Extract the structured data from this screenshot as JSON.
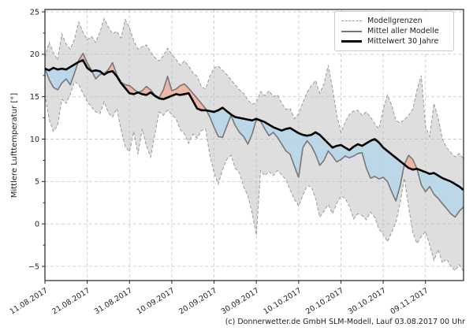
{
  "caption": "(c) Donnerwetter.de GmbH SLM-Modell, Lauf 03.08.2017 00 Uhr",
  "chart_data": {
    "type": "line",
    "title": "",
    "xlabel": "",
    "ylabel": "Mittlere Lufttemperatur [°]",
    "ylim": [
      -6.7,
      25.3
    ],
    "yticks": [
      25,
      20,
      15,
      10,
      5,
      0,
      -5
    ],
    "ytick_labels": [
      "25",
      "20",
      "15",
      "10",
      "5",
      "0",
      "−5"
    ],
    "yminor_ticks": [
      22.5,
      17.5,
      12.5,
      7.5,
      2.5,
      -2.5
    ],
    "grid": true,
    "legend_position": "top-right",
    "x_tick_days": [
      0,
      10,
      20,
      30,
      40,
      50,
      60,
      70,
      80,
      90
    ],
    "x_tick_labels": [
      "11.08.2017",
      "21.08.2017",
      "31.08.2017",
      "10.09.2017",
      "20.09.2017",
      "30.09.2017",
      "10.10.2017",
      "20.10.2017",
      "30.10.2017",
      "09.11.2017"
    ],
    "legend": [
      {
        "label": "Modellgrenzen",
        "style": "dashed-gray"
      },
      {
        "label": "Mittel aller Modelle",
        "style": "solid-gray"
      },
      {
        "label": "Mittelwert 30 Jahre",
        "style": "solid-black-thick"
      }
    ],
    "colors": {
      "band_fill": "#bdbdbd",
      "warm_anomaly_fill": "#f0b0a0",
      "cold_anomaly_fill": "#b7d6e8",
      "bound_line": "#999999",
      "model_mean_line": "#777777",
      "climate_mean_line": "#000000",
      "grid_line": "#cccccc",
      "frame": "#222222",
      "text": "#222222"
    },
    "series": [
      {
        "name": "Modellgrenzen",
        "role": "upper_bound",
        "values": [
          19.6,
          21.4,
          20.2,
          19.3,
          22.4,
          21.2,
          20.6,
          21.8,
          23.8,
          22.6,
          21.7,
          22.1,
          21.4,
          22.6,
          24.2,
          23.2,
          22.4,
          22.7,
          21.9,
          24.1,
          23.1,
          21.6,
          20.6,
          20.9,
          21.1,
          20.3,
          19.6,
          19.2,
          19.8,
          20.7,
          20.0,
          19.4,
          18.7,
          19.2,
          18.6,
          17.8,
          17.4,
          16.2,
          15.9,
          17.4,
          18.4,
          18.6,
          18.1,
          17.6,
          17.0,
          16.4,
          15.8,
          15.4,
          14.6,
          14.1,
          14.3,
          15.6,
          15.1,
          15.7,
          15.0,
          15.2,
          14.2,
          13.5,
          13.6,
          12.4,
          13.0,
          14.3,
          15.5,
          16.3,
          16.9,
          15.4,
          16.5,
          18.7,
          16.0,
          12.9,
          10.8,
          12.0,
          12.9,
          13.3,
          13.4,
          12.8,
          13.2,
          12.6,
          11.8,
          11.2,
          13.5,
          15.2,
          14.0,
          12.2,
          11.9,
          12.3,
          12.8,
          13.5,
          15.8,
          17.5,
          11.5,
          10.3,
          14.2,
          12.5,
          10.0,
          9.0,
          8.4,
          7.9,
          8.3,
          7.7
        ]
      },
      {
        "name": "Modellgrenzen",
        "role": "lower_bound",
        "values": [
          15.3,
          12.3,
          10.9,
          11.6,
          14.7,
          14.2,
          15.3,
          16.8,
          16.4,
          15.4,
          14.4,
          13.8,
          13.2,
          13.0,
          14.4,
          13.1,
          12.6,
          13.6,
          11.1,
          9.1,
          8.5,
          10.9,
          8.2,
          11.2,
          9.2,
          7.9,
          10.6,
          13.2,
          12.8,
          13.4,
          12.9,
          12.4,
          11.1,
          10.6,
          9.5,
          10.6,
          10.1,
          11.0,
          11.2,
          8.1,
          6.0,
          4.7,
          6.4,
          7.6,
          8.1,
          6.6,
          6.0,
          4.4,
          3.3,
          1.3,
          -1.3,
          6.3,
          5.7,
          6.2,
          5.7,
          6.3,
          5.8,
          5.2,
          4.0,
          2.9,
          2.1,
          3.4,
          4.5,
          4.4,
          3.0,
          0.8,
          1.5,
          2.3,
          1.2,
          2.4,
          3.3,
          3.0,
          2.1,
          0.6,
          1.2,
          1.0,
          0.5,
          1.4,
          0.8,
          -0.6,
          -1.2,
          -2.1,
          -1.0,
          0.2,
          2.5,
          5.4,
          2.0,
          -1.0,
          -2.3,
          -1.5,
          -0.9,
          -2.5,
          -4.3,
          -3.0,
          -4.6,
          -4.1,
          -5.0,
          -5.5,
          -4.8,
          -5.6
        ]
      },
      {
        "name": "Mittel aller Modelle",
        "role": "model_mean",
        "values": [
          18.3,
          17.0,
          16.1,
          15.8,
          16.6,
          17.1,
          16.4,
          17.8,
          19.3,
          20.1,
          19.0,
          18.1,
          17.1,
          17.6,
          17.7,
          18.2,
          19.0,
          17.6,
          16.7,
          16.4,
          16.3,
          15.9,
          15.5,
          15.7,
          16.2,
          15.8,
          15.2,
          14.9,
          15.8,
          17.4,
          15.7,
          15.9,
          16.3,
          16.5,
          16.0,
          15.4,
          14.8,
          14.2,
          13.6,
          12.6,
          11.4,
          10.3,
          10.2,
          11.5,
          12.8,
          11.6,
          10.8,
          10.3,
          9.4,
          10.6,
          12.3,
          12.1,
          11.2,
          10.4,
          10.8,
          10.2,
          9.4,
          8.6,
          8.2,
          6.8,
          5.5,
          9.0,
          9.8,
          9.2,
          8.2,
          6.9,
          7.5,
          8.6,
          8.0,
          7.3,
          7.6,
          8.0,
          7.8,
          8.0,
          8.3,
          8.4,
          6.6,
          5.4,
          5.6,
          5.3,
          5.5,
          5.0,
          3.8,
          2.7,
          4.5,
          7.0,
          8.1,
          7.6,
          6.5,
          4.6,
          3.8,
          4.4,
          3.5,
          3.0,
          2.4,
          1.8,
          1.2,
          0.8,
          1.5,
          2.0
        ]
      },
      {
        "name": "Mittelwert 30 Jahre",
        "role": "climate_mean",
        "values": [
          18.3,
          18.1,
          18.4,
          18.2,
          18.3,
          18.2,
          18.5,
          18.8,
          19.1,
          19.3,
          18.4,
          18.0,
          18.1,
          18.0,
          17.6,
          17.9,
          18.0,
          17.4,
          16.6,
          16.0,
          15.4,
          15.3,
          15.5,
          15.3,
          15.2,
          15.5,
          15.1,
          14.8,
          14.7,
          14.9,
          15.1,
          15.3,
          15.2,
          15.3,
          15.4,
          14.5,
          13.6,
          13.4,
          13.4,
          13.3,
          13.2,
          13.4,
          13.7,
          13.3,
          12.9,
          12.6,
          12.5,
          12.4,
          12.3,
          12.2,
          12.4,
          12.2,
          12.0,
          11.7,
          11.4,
          11.2,
          11.0,
          11.2,
          11.3,
          11.0,
          10.7,
          10.5,
          10.4,
          10.5,
          10.8,
          10.5,
          10.0,
          9.5,
          9.0,
          9.2,
          9.3,
          9.0,
          8.7,
          9.1,
          9.4,
          9.2,
          9.5,
          9.8,
          10.0,
          9.6,
          9.0,
          8.6,
          8.2,
          7.8,
          7.4,
          7.0,
          6.6,
          6.4,
          6.5,
          6.3,
          6.1,
          5.9,
          6.0,
          5.7,
          5.4,
          5.2,
          5.0,
          4.7,
          4.4,
          4.0
        ]
      }
    ]
  }
}
